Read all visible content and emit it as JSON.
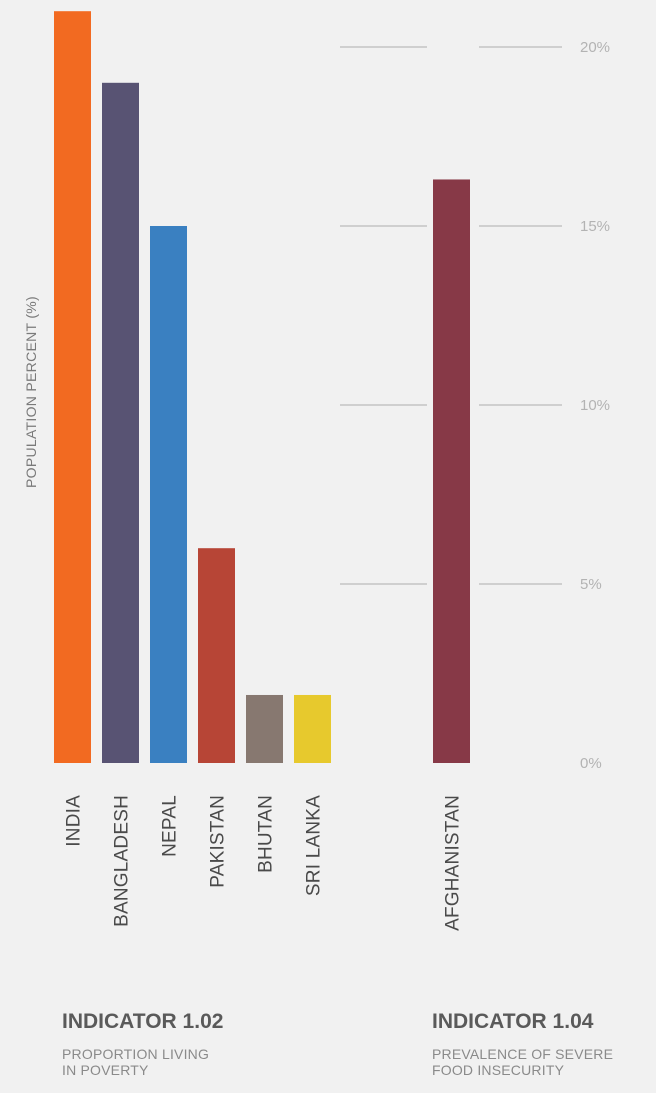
{
  "chart_data": {
    "type": "bar",
    "ylabel": "POPULATION PERCENT (%)",
    "ylim": [
      0,
      21
    ],
    "yticks": [
      0,
      5,
      10,
      15,
      20
    ],
    "ytick_labels": [
      "0%",
      "5%",
      "10%",
      "15%",
      "20%"
    ],
    "grid": true,
    "categories": [
      "INDIA",
      "BANGLADESH",
      "NEPAL",
      "PAKISTAN",
      "BHUTAN",
      "SRI LANKA",
      "AFGHANISTAN"
    ],
    "values": [
      21.0,
      19.0,
      15.0,
      6.0,
      1.9,
      1.9,
      16.3
    ],
    "colors": [
      "#f26a21",
      "#585373",
      "#3a80c1",
      "#b74536",
      "#877870",
      "#e7c92d",
      "#873947"
    ],
    "groups": [
      {
        "indicator": "INDICATOR 1.02",
        "description": [
          "PROPORTION LIVING",
          "IN POVERTY"
        ],
        "categories": [
          "INDIA",
          "BANGLADESH",
          "NEPAL",
          "PAKISTAN",
          "BHUTAN",
          "SRI LANKA"
        ]
      },
      {
        "indicator": "INDICATOR 1.04",
        "description": [
          "PREVALENCE OF SEVERE",
          "FOOD INSECURITY"
        ],
        "categories": [
          "AFGHANISTAN"
        ]
      }
    ]
  }
}
